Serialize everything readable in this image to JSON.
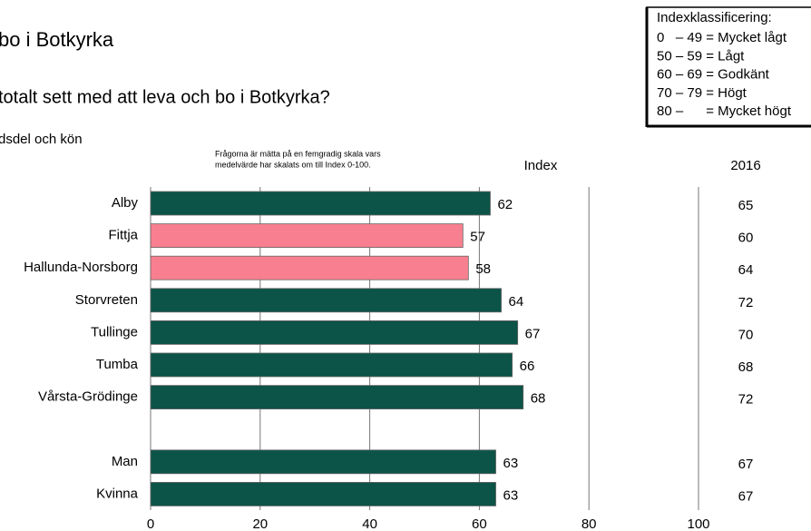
{
  "chart_data": {
    "type": "hbar",
    "title": "bo i Botkyrka",
    "subtitle": "totalt sett med att leva och bo i Botkyrka?",
    "breakdown": "dsdel och kön",
    "note": [
      "Frågorna är mätta på en femgradig skala vars",
      "medelvärde har skalats om till Index 0-100."
    ],
    "value_header": "Index",
    "categories": [
      "Alby",
      "Fittja",
      "Hallunda-Norsborg",
      "Storvreten",
      "Tullinge",
      "Tumba",
      "Vårsta-Grödinge",
      null,
      "Man",
      "Kvinna"
    ],
    "values": [
      62,
      57,
      58,
      64,
      67,
      66,
      68,
      null,
      63,
      63
    ],
    "colors": [
      "#0b5447",
      "#f77f8f",
      "#f77f8f",
      "#0b5447",
      "#0b5447",
      "#0b5447",
      "#0b5447",
      null,
      "#0b5447",
      "#0b5447"
    ],
    "comparison": {
      "header": "2016",
      "values": [
        65,
        60,
        64,
        72,
        70,
        68,
        72,
        null,
        67,
        67
      ]
    },
    "xlim": [
      0,
      100
    ],
    "xticks": [
      0,
      20,
      40,
      60,
      80,
      100
    ],
    "grid": true,
    "legend_box": {
      "title": "Indexklassificering:",
      "lines": [
        "0   – 49 = Mycket lågt",
        "50 – 59 = Lågt",
        "60 – 69 = Godkänt",
        "70 – 79 = Högt",
        "80 –      = Mycket högt"
      ]
    }
  }
}
